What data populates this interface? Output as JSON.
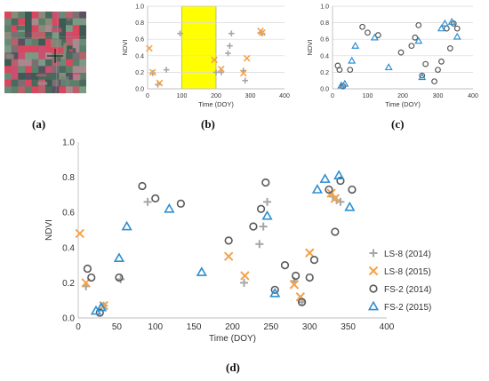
{
  "captions": {
    "a": "(a)",
    "b": "(b)",
    "c": "(c)",
    "d": "(d)"
  },
  "colors": {
    "ls8": "#a6a6a6",
    "ls8_2015": "#f4a34a",
    "fs2_2014": "#595959",
    "fs2_2015": "#2e8fd1",
    "highlight": "#ffff00",
    "grid": "#d9d9d9"
  },
  "chart_data": [
    {
      "id": "b",
      "type": "scatter",
      "title": "",
      "xlabel": "Time (DOY)",
      "ylabel": "NDVI",
      "xlim": [
        0,
        400
      ],
      "ylim": [
        0,
        1.0
      ],
      "xticks": [
        "0",
        "100",
        "200",
        "300",
        "400"
      ],
      "yticks": [
        "0.0",
        "0.2",
        "0.4",
        "0.6",
        "0.8",
        "1.0"
      ],
      "grid": "horizontal",
      "highlight_band": [
        100,
        200
      ],
      "series": [
        {
          "key": "ls8_2014",
          "marker": "plus",
          "points": [
            [
              15,
              0.19
            ],
            [
              30,
              0.05
            ],
            [
              55,
              0.23
            ],
            [
              95,
              0.67
            ],
            [
              200,
              0.2
            ],
            [
              215,
              0.2
            ],
            [
              235,
              0.43
            ],
            [
              240,
              0.52
            ],
            [
              245,
              0.67
            ],
            [
              280,
              0.22
            ],
            [
              285,
              0.1
            ],
            [
              330,
              0.68
            ],
            [
              335,
              0.67
            ]
          ]
        },
        {
          "key": "ls8_2015",
          "marker": "x",
          "points": [
            [
              5,
              0.49
            ],
            [
              15,
              0.2
            ],
            [
              35,
              0.07
            ],
            [
              195,
              0.35
            ],
            [
              215,
              0.24
            ],
            [
              280,
              0.19
            ],
            [
              290,
              0.37
            ],
            [
              330,
              0.7
            ],
            [
              335,
              0.68
            ]
          ]
        }
      ]
    },
    {
      "id": "c",
      "type": "scatter",
      "title": "",
      "xlabel": "Time (DOY)",
      "ylabel": "NDVI",
      "xlim": [
        0,
        400
      ],
      "ylim": [
        0,
        1.0
      ],
      "xticks": [
        "0",
        "100",
        "200",
        "300",
        "400"
      ],
      "yticks": [
        "0.0",
        "0.2",
        "0.4",
        "0.6",
        "0.8",
        "1.0"
      ],
      "grid": "horizontal",
      "series": [
        {
          "key": "fs2_2014",
          "marker": "circle",
          "points": [
            [
              15,
              0.28
            ],
            [
              20,
              0.23
            ],
            [
              30,
              0.03
            ],
            [
              50,
              0.23
            ],
            [
              85,
              0.75
            ],
            [
              100,
              0.68
            ],
            [
              130,
              0.65
            ],
            [
              195,
              0.44
            ],
            [
              225,
              0.52
            ],
            [
              235,
              0.62
            ],
            [
              245,
              0.77
            ],
            [
              255,
              0.16
            ],
            [
              265,
              0.3
            ],
            [
              290,
              0.09
            ],
            [
              300,
              0.23
            ],
            [
              310,
              0.33
            ],
            [
              325,
              0.73
            ],
            [
              335,
              0.49
            ],
            [
              345,
              0.79
            ],
            [
              355,
              0.73
            ]
          ]
        },
        {
          "key": "fs2_2015",
          "marker": "triangle",
          "points": [
            [
              25,
              0.04
            ],
            [
              35,
              0.06
            ],
            [
              55,
              0.34
            ],
            [
              65,
              0.52
            ],
            [
              120,
              0.62
            ],
            [
              160,
              0.26
            ],
            [
              245,
              0.58
            ],
            [
              255,
              0.14
            ],
            [
              310,
              0.73
            ],
            [
              320,
              0.79
            ],
            [
              340,
              0.81
            ],
            [
              355,
              0.63
            ]
          ]
        }
      ]
    },
    {
      "id": "d",
      "type": "scatter",
      "title": "",
      "xlabel": "Time (DOY)",
      "ylabel": "NDVI",
      "xlim": [
        0,
        400
      ],
      "ylim": [
        0,
        1.0
      ],
      "xticks": [
        "0",
        "50",
        "100",
        "150",
        "200",
        "250",
        "300",
        "350",
        "400"
      ],
      "yticks": [
        "0.0",
        "0.2",
        "0.4",
        "0.6",
        "0.8",
        "1.0"
      ],
      "grid": "none",
      "legend_position": "right",
      "series": [
        {
          "key": "ls8_2014",
          "name": "LS-8 (2014)",
          "marker": "plus",
          "points": [
            [
              10,
              0.18
            ],
            [
              33,
              0.07
            ],
            [
              55,
              0.22
            ],
            [
              90,
              0.66
            ],
            [
              215,
              0.2
            ],
            [
              235,
              0.42
            ],
            [
              240,
              0.52
            ],
            [
              245,
              0.66
            ],
            [
              280,
              0.21
            ],
            [
              290,
              0.09
            ],
            [
              330,
              0.69
            ],
            [
              335,
              0.67
            ],
            [
              340,
              0.66
            ]
          ]
        },
        {
          "key": "ls8_2015",
          "name": "LS-8 (2015)",
          "marker": "x",
          "points": [
            [
              2,
              0.48
            ],
            [
              10,
              0.2
            ],
            [
              33,
              0.07
            ],
            [
              195,
              0.35
            ],
            [
              216,
              0.24
            ],
            [
              280,
              0.19
            ],
            [
              288,
              0.12
            ],
            [
              300,
              0.37
            ],
            [
              328,
              0.71
            ],
            [
              333,
              0.68
            ]
          ]
        },
        {
          "key": "fs2_2014",
          "name": "FS-2 (2014)",
          "marker": "circle",
          "points": [
            [
              12,
              0.28
            ],
            [
              17,
              0.23
            ],
            [
              28,
              0.03
            ],
            [
              53,
              0.23
            ],
            [
              83,
              0.75
            ],
            [
              100,
              0.68
            ],
            [
              133,
              0.65
            ],
            [
              195,
              0.44
            ],
            [
              227,
              0.52
            ],
            [
              237,
              0.62
            ],
            [
              243,
              0.77
            ],
            [
              255,
              0.16
            ],
            [
              268,
              0.3
            ],
            [
              282,
              0.24
            ],
            [
              290,
              0.09
            ],
            [
              300,
              0.23
            ],
            [
              306,
              0.33
            ],
            [
              325,
              0.73
            ],
            [
              333,
              0.49
            ],
            [
              340,
              0.78
            ],
            [
              355,
              0.73
            ]
          ]
        },
        {
          "key": "fs2_2015",
          "name": "FS-2 (2015)",
          "marker": "triangle",
          "points": [
            [
              23,
              0.04
            ],
            [
              30,
              0.06
            ],
            [
              53,
              0.34
            ],
            [
              63,
              0.52
            ],
            [
              118,
              0.62
            ],
            [
              160,
              0.26
            ],
            [
              245,
              0.58
            ],
            [
              255,
              0.14
            ],
            [
              310,
              0.73
            ],
            [
              320,
              0.79
            ],
            [
              338,
              0.81
            ],
            [
              352,
              0.63
            ]
          ]
        }
      ]
    }
  ]
}
